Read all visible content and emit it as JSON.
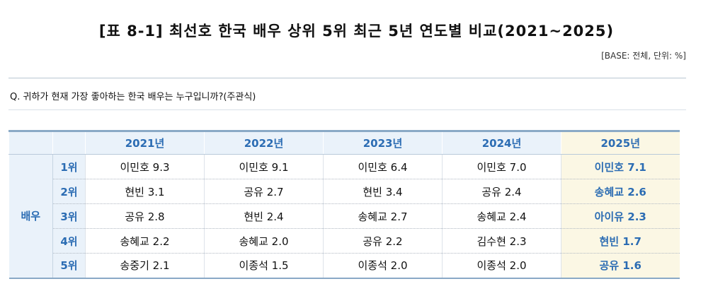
{
  "title": "[표 8-1] 최선호 한국 배우 상위 5위 최근 5년 연도별 비교(2021~2025)",
  "base_note": "[BASE: 전체, 단위: %]",
  "question": "Q. 귀하가 현재 가장 좋아하는 한국 배우는 누구입니까?(주관식)",
  "table": {
    "group_label": "배우",
    "years": [
      "2021년",
      "2022년",
      "2023년",
      "2024년",
      "2025년"
    ],
    "highlight_year": "2025년",
    "rows": [
      {
        "rank": "1위",
        "cells": [
          "이민호 9.3",
          "이민호 9.1",
          "이민호 6.4",
          "이민호 7.0",
          "이민호 7.1"
        ]
      },
      {
        "rank": "2위",
        "cells": [
          "현빈 3.1",
          "공유 2.7",
          "현빈 3.4",
          "공유 2.4",
          "송혜교 2.6"
        ]
      },
      {
        "rank": "3위",
        "cells": [
          "공유 2.8",
          "현빈 2.4",
          "송혜교 2.7",
          "송혜교 2.4",
          "아이유 2.3"
        ]
      },
      {
        "rank": "4위",
        "cells": [
          "송혜교 2.2",
          "송혜교 2.0",
          "공유 2.2",
          "김수현 2.3",
          "현빈 1.7"
        ]
      },
      {
        "rank": "5위",
        "cells": [
          "송중기 2.1",
          "이종석 1.5",
          "이종석 2.0",
          "이종석 2.0",
          "공유 1.6"
        ]
      }
    ]
  }
}
